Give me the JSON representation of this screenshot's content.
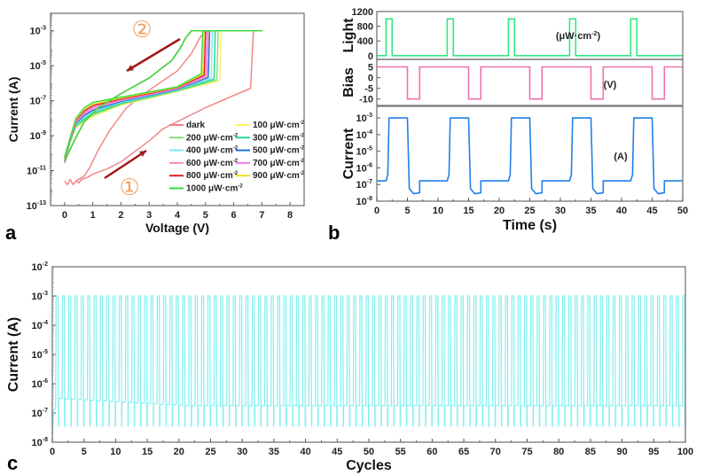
{
  "chart_data": [
    {
      "panel": "a",
      "type": "line",
      "xlabel": "Voltage (V)",
      "ylabel": "Current (A)",
      "xlim": [
        -0.5,
        8.5
      ],
      "ylim_log10": [
        -13,
        -2
      ],
      "xticks": [
        "0",
        "1",
        "2",
        "3",
        "4",
        "5",
        "6",
        "7",
        "8"
      ],
      "yticks": [
        {
          "base": "10",
          "exp": "-3",
          "value": -3
        },
        {
          "base": "10",
          "exp": "-5",
          "value": -5
        },
        {
          "base": "10",
          "exp": "-7",
          "value": -7
        },
        {
          "base": "10",
          "exp": "-9",
          "value": -9
        },
        {
          "base": "10",
          "exp": "-11",
          "value": -11
        },
        {
          "base": "10",
          "exp": "-13",
          "value": -13
        }
      ],
      "annotations": [
        {
          "text": "②",
          "color": "#f0a060",
          "meaning": "sweep back"
        },
        {
          "text": "①",
          "color": "#f0a060",
          "meaning": "sweep forward"
        }
      ],
      "legend_unit": "μW·cm",
      "legend_exp": "-2",
      "series": [
        {
          "name": "dark",
          "color": "#f08080",
          "switch_v": 6.7
        },
        {
          "name": "100",
          "color": "#ffee66",
          "switch_v": 5.55
        },
        {
          "name": "200",
          "color": "#80e070",
          "switch_v": 5.45
        },
        {
          "name": "300",
          "color": "#20d890",
          "switch_v": 5.35
        },
        {
          "name": "400",
          "color": "#80e8f0",
          "switch_v": 5.25
        },
        {
          "name": "500",
          "color": "#2070e0",
          "switch_v": 5.15
        },
        {
          "name": "600",
          "color": "#f090b0",
          "switch_v": 5.1
        },
        {
          "name": "700",
          "color": "#f080f0",
          "switch_v": 5.05
        },
        {
          "name": "800",
          "color": "#e02020",
          "switch_v": 5.0
        },
        {
          "name": "900",
          "color": "#f0e020",
          "switch_v": 4.95
        },
        {
          "name": "1000",
          "color": "#30e040",
          "switch_v": 4.9
        }
      ],
      "compliance_log10": -3
    },
    {
      "panel": "b",
      "type": "line",
      "xlabel": "Time (s)",
      "xlim": [
        0,
        50
      ],
      "xticks": [
        "0",
        "5",
        "10",
        "15",
        "20",
        "25",
        "30",
        "35",
        "40",
        "45",
        "50"
      ],
      "subplots": [
        {
          "ylabel": "Light",
          "unit": "(μW·cm",
          "unit_exp": "-2",
          "unit_close": ")",
          "ylim": [
            -100,
            1200
          ],
          "yticks": [
            "1200",
            "800",
            "400",
            "0"
          ],
          "ytick_values": [
            1200,
            800,
            400,
            0
          ],
          "color": "#30e880",
          "pulse_starts": [
            1.5,
            11.5,
            21.5,
            31.5,
            41.5
          ],
          "pulse_width": 1.0,
          "high": 1000,
          "low": 0
        },
        {
          "ylabel": "Bias",
          "unit": "(V)",
          "ylim": [
            -13,
            8.5
          ],
          "yticks": [
            "5",
            "0",
            "-5",
            "-10"
          ],
          "ytick_values": [
            5,
            0,
            -5,
            -10
          ],
          "color": "#f070b0",
          "pulse_starts": [
            5,
            15,
            25,
            35,
            45
          ],
          "pulse_width": 2.0,
          "high": 5,
          "low": -10
        },
        {
          "ylabel": "Current",
          "unit": "(A)",
          "ylim_log10": [
            -8,
            -2.3
          ],
          "yticks": [
            {
              "base": "10",
              "exp": "-3",
              "value": -3
            },
            {
              "base": "10",
              "exp": "-4",
              "value": -4
            },
            {
              "base": "10",
              "exp": "-5",
              "value": -5
            },
            {
              "base": "10",
              "exp": "-6",
              "value": -6
            },
            {
              "base": "10",
              "exp": "-7",
              "value": -7
            },
            {
              "base": "10",
              "exp": "-8",
              "value": -8
            }
          ],
          "color": "#2080e8",
          "levels_log10": {
            "baseline": -6.78,
            "on": -3,
            "after_off_start": -7.25,
            "after_off_end": -7.5,
            "pre_on": -6.4
          }
        }
      ]
    },
    {
      "panel": "c",
      "type": "line",
      "xlabel": "Cycles",
      "ylabel": "Current (A)",
      "xlim": [
        0,
        100
      ],
      "ylim_log10": [
        -8,
        -2
      ],
      "xticks": [
        "0",
        "5",
        "10",
        "15",
        "20",
        "25",
        "30",
        "35",
        "40",
        "45",
        "50",
        "55",
        "60",
        "65",
        "70",
        "75",
        "80",
        "85",
        "90",
        "95",
        "100"
      ],
      "yticks": [
        {
          "base": "10",
          "exp": "-2",
          "value": -2
        },
        {
          "base": "10",
          "exp": "-3",
          "value": -3
        },
        {
          "base": "10",
          "exp": "-4",
          "value": -4
        },
        {
          "base": "10",
          "exp": "-5",
          "value": -5
        },
        {
          "base": "10",
          "exp": "-6",
          "value": -6
        },
        {
          "base": "10",
          "exp": "-7",
          "value": -7
        },
        {
          "base": "10",
          "exp": "-8",
          "value": -8
        }
      ],
      "color": "#80f0f0",
      "cycles": 100,
      "on_log10": -3,
      "off_low_log10": -7.45,
      "baseline_start_log10": -6.5,
      "baseline_end_log10": -6.75
    }
  ],
  "panel_labels": [
    "a",
    "b",
    "c"
  ]
}
